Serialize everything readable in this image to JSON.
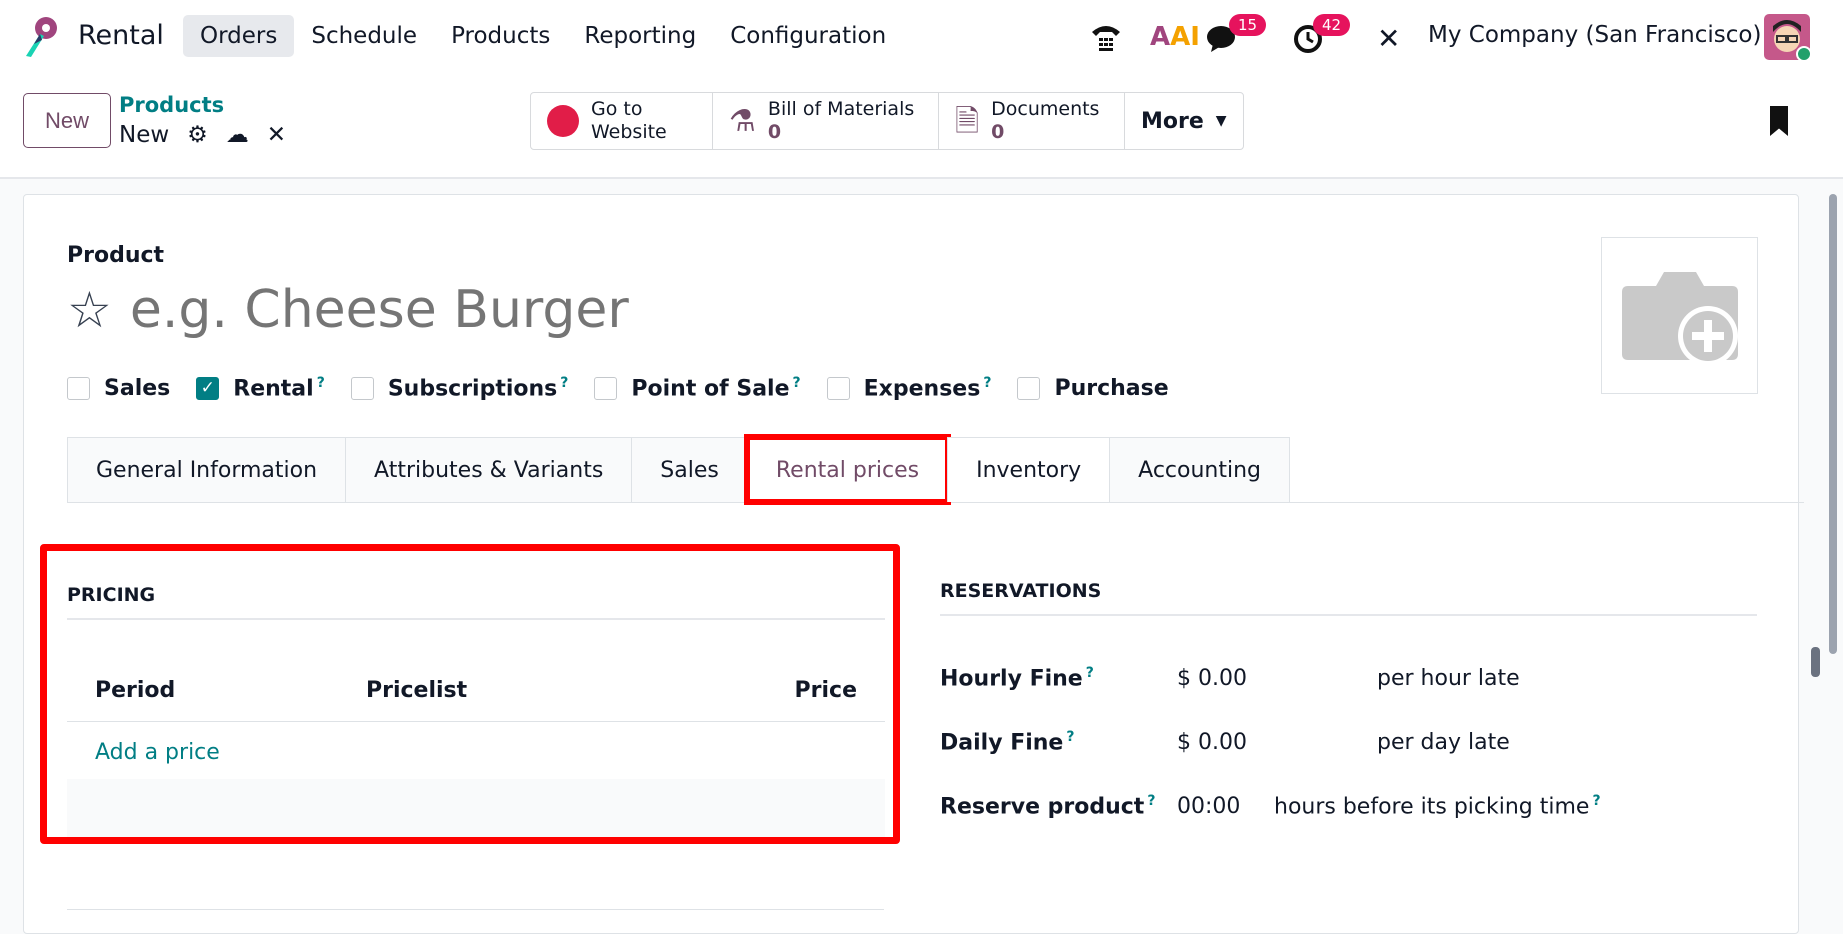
{
  "nav": {
    "app": "Rental",
    "menu": [
      "Orders",
      "Schedule",
      "Products",
      "Reporting",
      "Configuration"
    ],
    "active": "Orders",
    "messages_count": "15",
    "activities_count": "42",
    "company": "My Company (San Francisco)",
    "ai_label": "AI"
  },
  "control": {
    "new_label": "New",
    "breadcrumb_parent": "Products",
    "breadcrumb_current": "New",
    "smart_buttons": [
      {
        "label": "Go to Website"
      },
      {
        "label": "Bill of Materials",
        "count": "0"
      },
      {
        "label": "Documents",
        "count": "0"
      },
      {
        "label": "More"
      }
    ]
  },
  "form": {
    "product_label": "Product",
    "name_placeholder": "e.g. Cheese Burger",
    "checkboxes": [
      {
        "label": "Sales",
        "checked": false
      },
      {
        "label": "Rental",
        "checked": true,
        "help": "?"
      },
      {
        "label": "Subscriptions",
        "checked": false,
        "help": "?"
      },
      {
        "label": "Point of Sale",
        "checked": false,
        "help": "?"
      },
      {
        "label": "Expenses",
        "checked": false,
        "help": "?"
      },
      {
        "label": "Purchase",
        "checked": false
      }
    ],
    "tabs": [
      "General Information",
      "Attributes & Variants",
      "Sales",
      "Rental prices",
      "Inventory",
      "Accounting"
    ],
    "active_tab": "Rental prices"
  },
  "pricing": {
    "title": "PRICING",
    "columns": [
      "Period",
      "Pricelist",
      "Price"
    ],
    "add_label": "Add a price"
  },
  "reservations": {
    "title": "RESERVATIONS",
    "rows": [
      {
        "label": "Hourly Fine",
        "value": "$ 0.00",
        "suffix": "per hour late"
      },
      {
        "label": "Daily Fine",
        "value": "$ 0.00",
        "suffix": "per day late"
      },
      {
        "label": "Reserve product",
        "value": "00:00",
        "suffix": "hours before its picking time"
      }
    ],
    "help": "?"
  },
  "colors": {
    "brand": "#714b67",
    "accent": "#017e84",
    "highlight": "#ff0000",
    "badge": "#e6135d"
  }
}
